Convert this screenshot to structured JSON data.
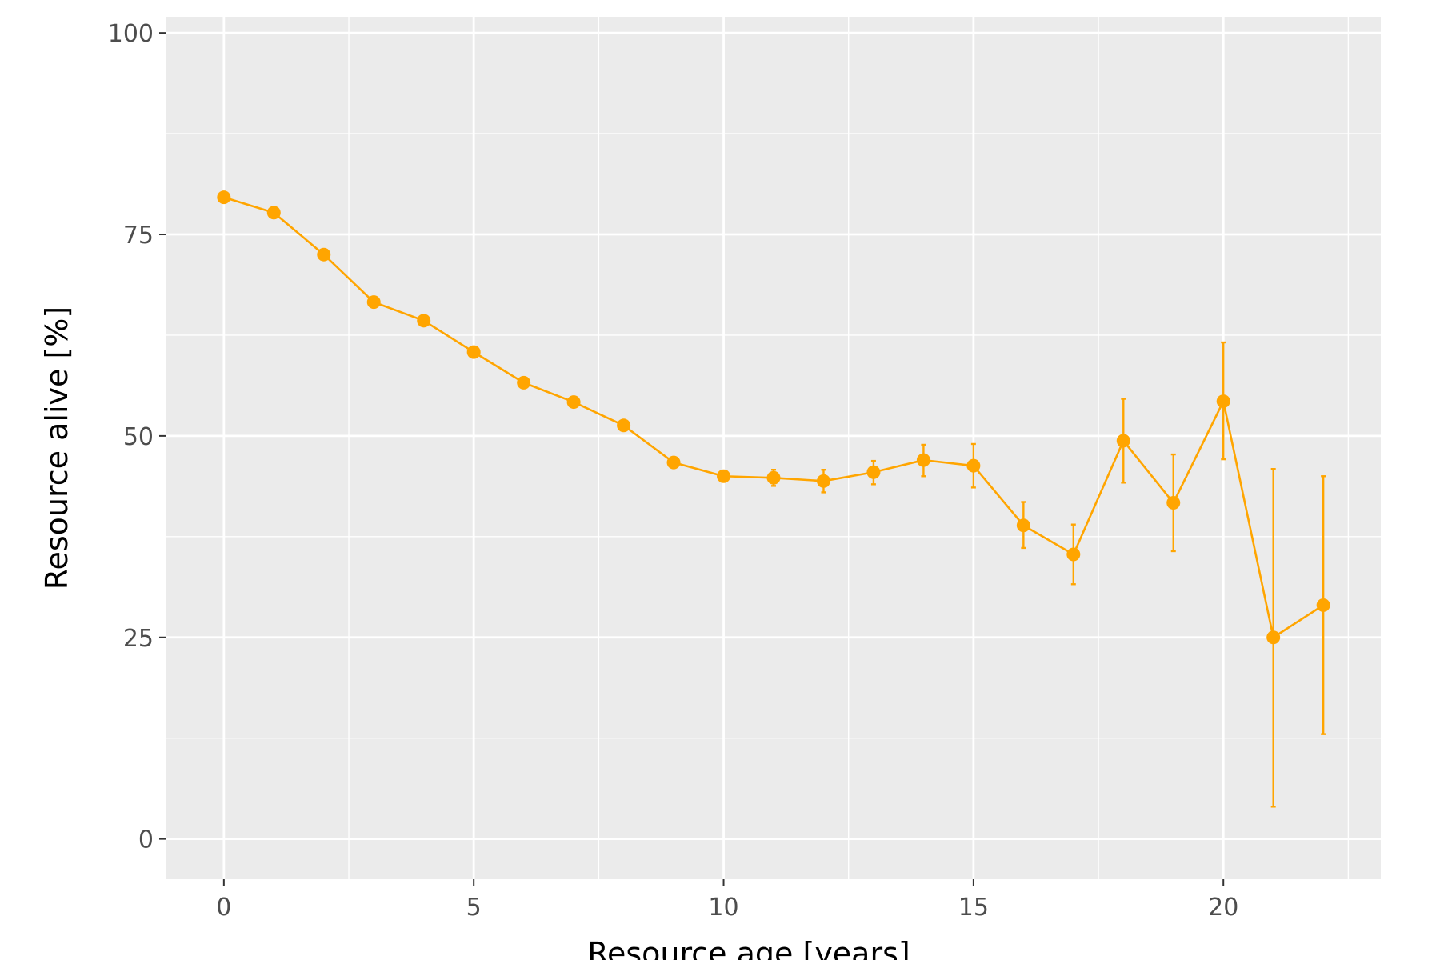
{
  "chart_data": {
    "type": "line",
    "xlabel": "Resource age [years]",
    "ylabel": "Resource alive [%]",
    "xlim": [
      -1.15,
      23.15
    ],
    "ylim": [
      -5,
      102
    ],
    "x_ticks": [
      0,
      5,
      10,
      15,
      20
    ],
    "y_ticks": [
      0,
      25,
      50,
      75,
      100
    ],
    "grid": true,
    "legend": "none",
    "colors": {
      "series": "#FFA500",
      "panel": "#EBEBEB",
      "grid": "#FFFFFF",
      "tick_label": "#4D4D4D"
    },
    "series": [
      {
        "x": [
          0,
          1,
          2,
          3,
          4,
          5,
          6,
          7,
          8,
          9,
          10,
          11,
          12,
          13,
          14,
          15,
          16,
          17,
          18,
          19,
          20,
          21,
          22
        ],
        "y": [
          79.6,
          77.7,
          72.5,
          66.6,
          64.3,
          60.4,
          56.6,
          54.2,
          51.3,
          46.7,
          45.0,
          44.8,
          44.4,
          45.5,
          47.0,
          46.3,
          38.9,
          35.3,
          49.4,
          41.7,
          54.3,
          25.0,
          29.0
        ],
        "ymin": [
          79.6,
          77.7,
          72.5,
          66.6,
          64.3,
          60.4,
          56.6,
          54.2,
          51.3,
          46.7,
          44.3,
          43.8,
          43.0,
          44.0,
          45.0,
          43.6,
          36.1,
          31.6,
          44.2,
          35.7,
          47.1,
          4.0,
          13.0
        ],
        "ymax": [
          79.6,
          77.7,
          72.5,
          66.6,
          64.3,
          60.4,
          56.6,
          54.2,
          51.3,
          46.7,
          45.7,
          45.8,
          45.8,
          46.9,
          48.9,
          49.0,
          41.8,
          39.0,
          54.6,
          47.7,
          61.6,
          45.9,
          45.0
        ]
      }
    ]
  }
}
